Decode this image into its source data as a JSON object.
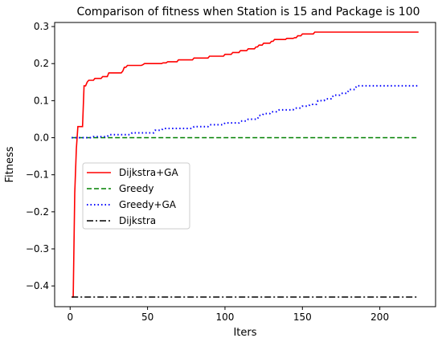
{
  "chart_data": {
    "type": "line",
    "title": "Comparison of fitness when Station is 15 and Package is 100",
    "xlabel": "Iters",
    "ylabel": "Fitness",
    "xlim": [
      -10,
      236
    ],
    "ylim": [
      -0.456,
      0.311
    ],
    "xticks": [
      0,
      50,
      100,
      150,
      200
    ],
    "yticks": [
      -0.4,
      -0.3,
      -0.2,
      -0.1,
      0.0,
      0.1,
      0.2,
      0.3
    ],
    "ytick_labels": [
      "−0.4",
      "−0.3",
      "−0.2",
      "−0.1",
      "0.0",
      "0.1",
      "0.2",
      "0.3"
    ],
    "xtick_labels": [
      "0",
      "50",
      "100",
      "150",
      "200"
    ],
    "legend_position": "center-left",
    "grid": false,
    "series": [
      {
        "name": "Dijkstra+GA",
        "color": "#ff0000",
        "style": "solid",
        "x": [
          1,
          2,
          3,
          4,
          5,
          8,
          9,
          10,
          11,
          12,
          15,
          16,
          20,
          21,
          25,
          30,
          34,
          35,
          37,
          40,
          47,
          48,
          55,
          60,
          63,
          65,
          70,
          75,
          80,
          90,
          100,
          105,
          110,
          115,
          120,
          122,
          125,
          130,
          132,
          135,
          140,
          145,
          147,
          150,
          155,
          158,
          160,
          200,
          225
        ],
        "y": [
          -0.43,
          -0.43,
          -0.15,
          -0.03,
          0.03,
          0.03,
          0.14,
          0.14,
          0.15,
          0.155,
          0.155,
          0.16,
          0.16,
          0.165,
          0.175,
          0.175,
          0.18,
          0.19,
          0.195,
          0.195,
          0.197,
          0.2,
          0.2,
          0.202,
          0.205,
          0.205,
          0.21,
          0.21,
          0.215,
          0.22,
          0.225,
          0.23,
          0.235,
          0.24,
          0.245,
          0.25,
          0.255,
          0.26,
          0.265,
          0.265,
          0.268,
          0.27,
          0.275,
          0.28,
          0.28,
          0.285,
          0.285,
          0.285,
          0.285
        ]
      },
      {
        "name": "Greedy",
        "color": "#008000",
        "style": "dashed",
        "x": [
          1,
          225
        ],
        "y": [
          0.0,
          0.0
        ]
      },
      {
        "name": "Greedy+GA",
        "color": "#0000ff",
        "style": "dotted",
        "x": [
          1,
          10,
          15,
          20,
          25,
          30,
          40,
          45,
          55,
          60,
          70,
          80,
          90,
          100,
          105,
          110,
          115,
          120,
          122,
          125,
          130,
          135,
          140,
          145,
          150,
          155,
          160,
          165,
          170,
          175,
          180,
          185,
          225
        ],
        "y": [
          0.0,
          0.0,
          0.003,
          0.003,
          0.008,
          0.008,
          0.013,
          0.013,
          0.02,
          0.025,
          0.025,
          0.03,
          0.035,
          0.04,
          0.04,
          0.045,
          0.05,
          0.05,
          0.06,
          0.065,
          0.07,
          0.075,
          0.075,
          0.08,
          0.085,
          0.09,
          0.1,
          0.105,
          0.115,
          0.12,
          0.13,
          0.14,
          0.14
        ]
      },
      {
        "name": "Dijkstra",
        "color": "#000000",
        "style": "dashdot",
        "x": [
          1,
          225
        ],
        "y": [
          -0.43,
          -0.43
        ]
      }
    ]
  }
}
